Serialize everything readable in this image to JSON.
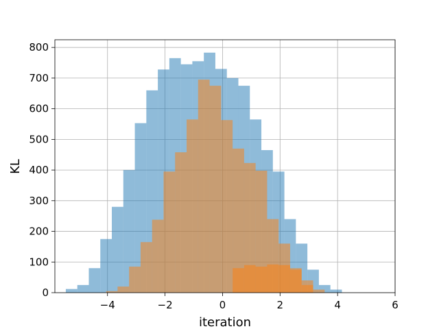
{
  "chart_data": {
    "type": "bar",
    "subtype": "overlapping-histogram",
    "xlabel": "iteration",
    "ylabel": "KL",
    "xlim": [
      -5.83,
      6.0
    ],
    "ylim": [
      0,
      825
    ],
    "xticks": [
      -4,
      -2,
      0,
      2,
      4,
      6
    ],
    "xtick_labels": [
      "−4",
      "−2",
      "0",
      "2",
      "4",
      "6"
    ],
    "yticks": [
      0,
      100,
      200,
      300,
      400,
      500,
      600,
      700,
      800
    ],
    "ytick_labels": [
      "0",
      "100",
      "200",
      "300",
      "400",
      "500",
      "600",
      "700",
      "800"
    ],
    "grid": true,
    "series": [
      {
        "color": "#1f77b4",
        "opacity": 0.5,
        "bin_start": -5.45,
        "bin_width": 0.4,
        "values": [
          12,
          25,
          80,
          175,
          280,
          400,
          553,
          660,
          728,
          765,
          745,
          755,
          783,
          730,
          700,
          675,
          565,
          465,
          395,
          240,
          160,
          75,
          25,
          10
        ]
      },
      {
        "color": "#ff7f0e",
        "opacity": 0.5,
        "bin_start": -4.05,
        "bin_width": 0.4,
        "values": [
          5,
          20,
          85,
          165,
          238,
          395,
          458,
          565,
          695,
          675,
          563,
          470,
          423,
          398,
          240,
          160,
          75,
          25,
          10,
          0,
          0
        ]
      },
      {
        "color": "#ff7f0e",
        "opacity": 0.5,
        "bin_start": 0.35,
        "bin_width": 0.4,
        "values": [
          80,
          90,
          85,
          92,
          90,
          80,
          40,
          0
        ]
      }
    ]
  }
}
